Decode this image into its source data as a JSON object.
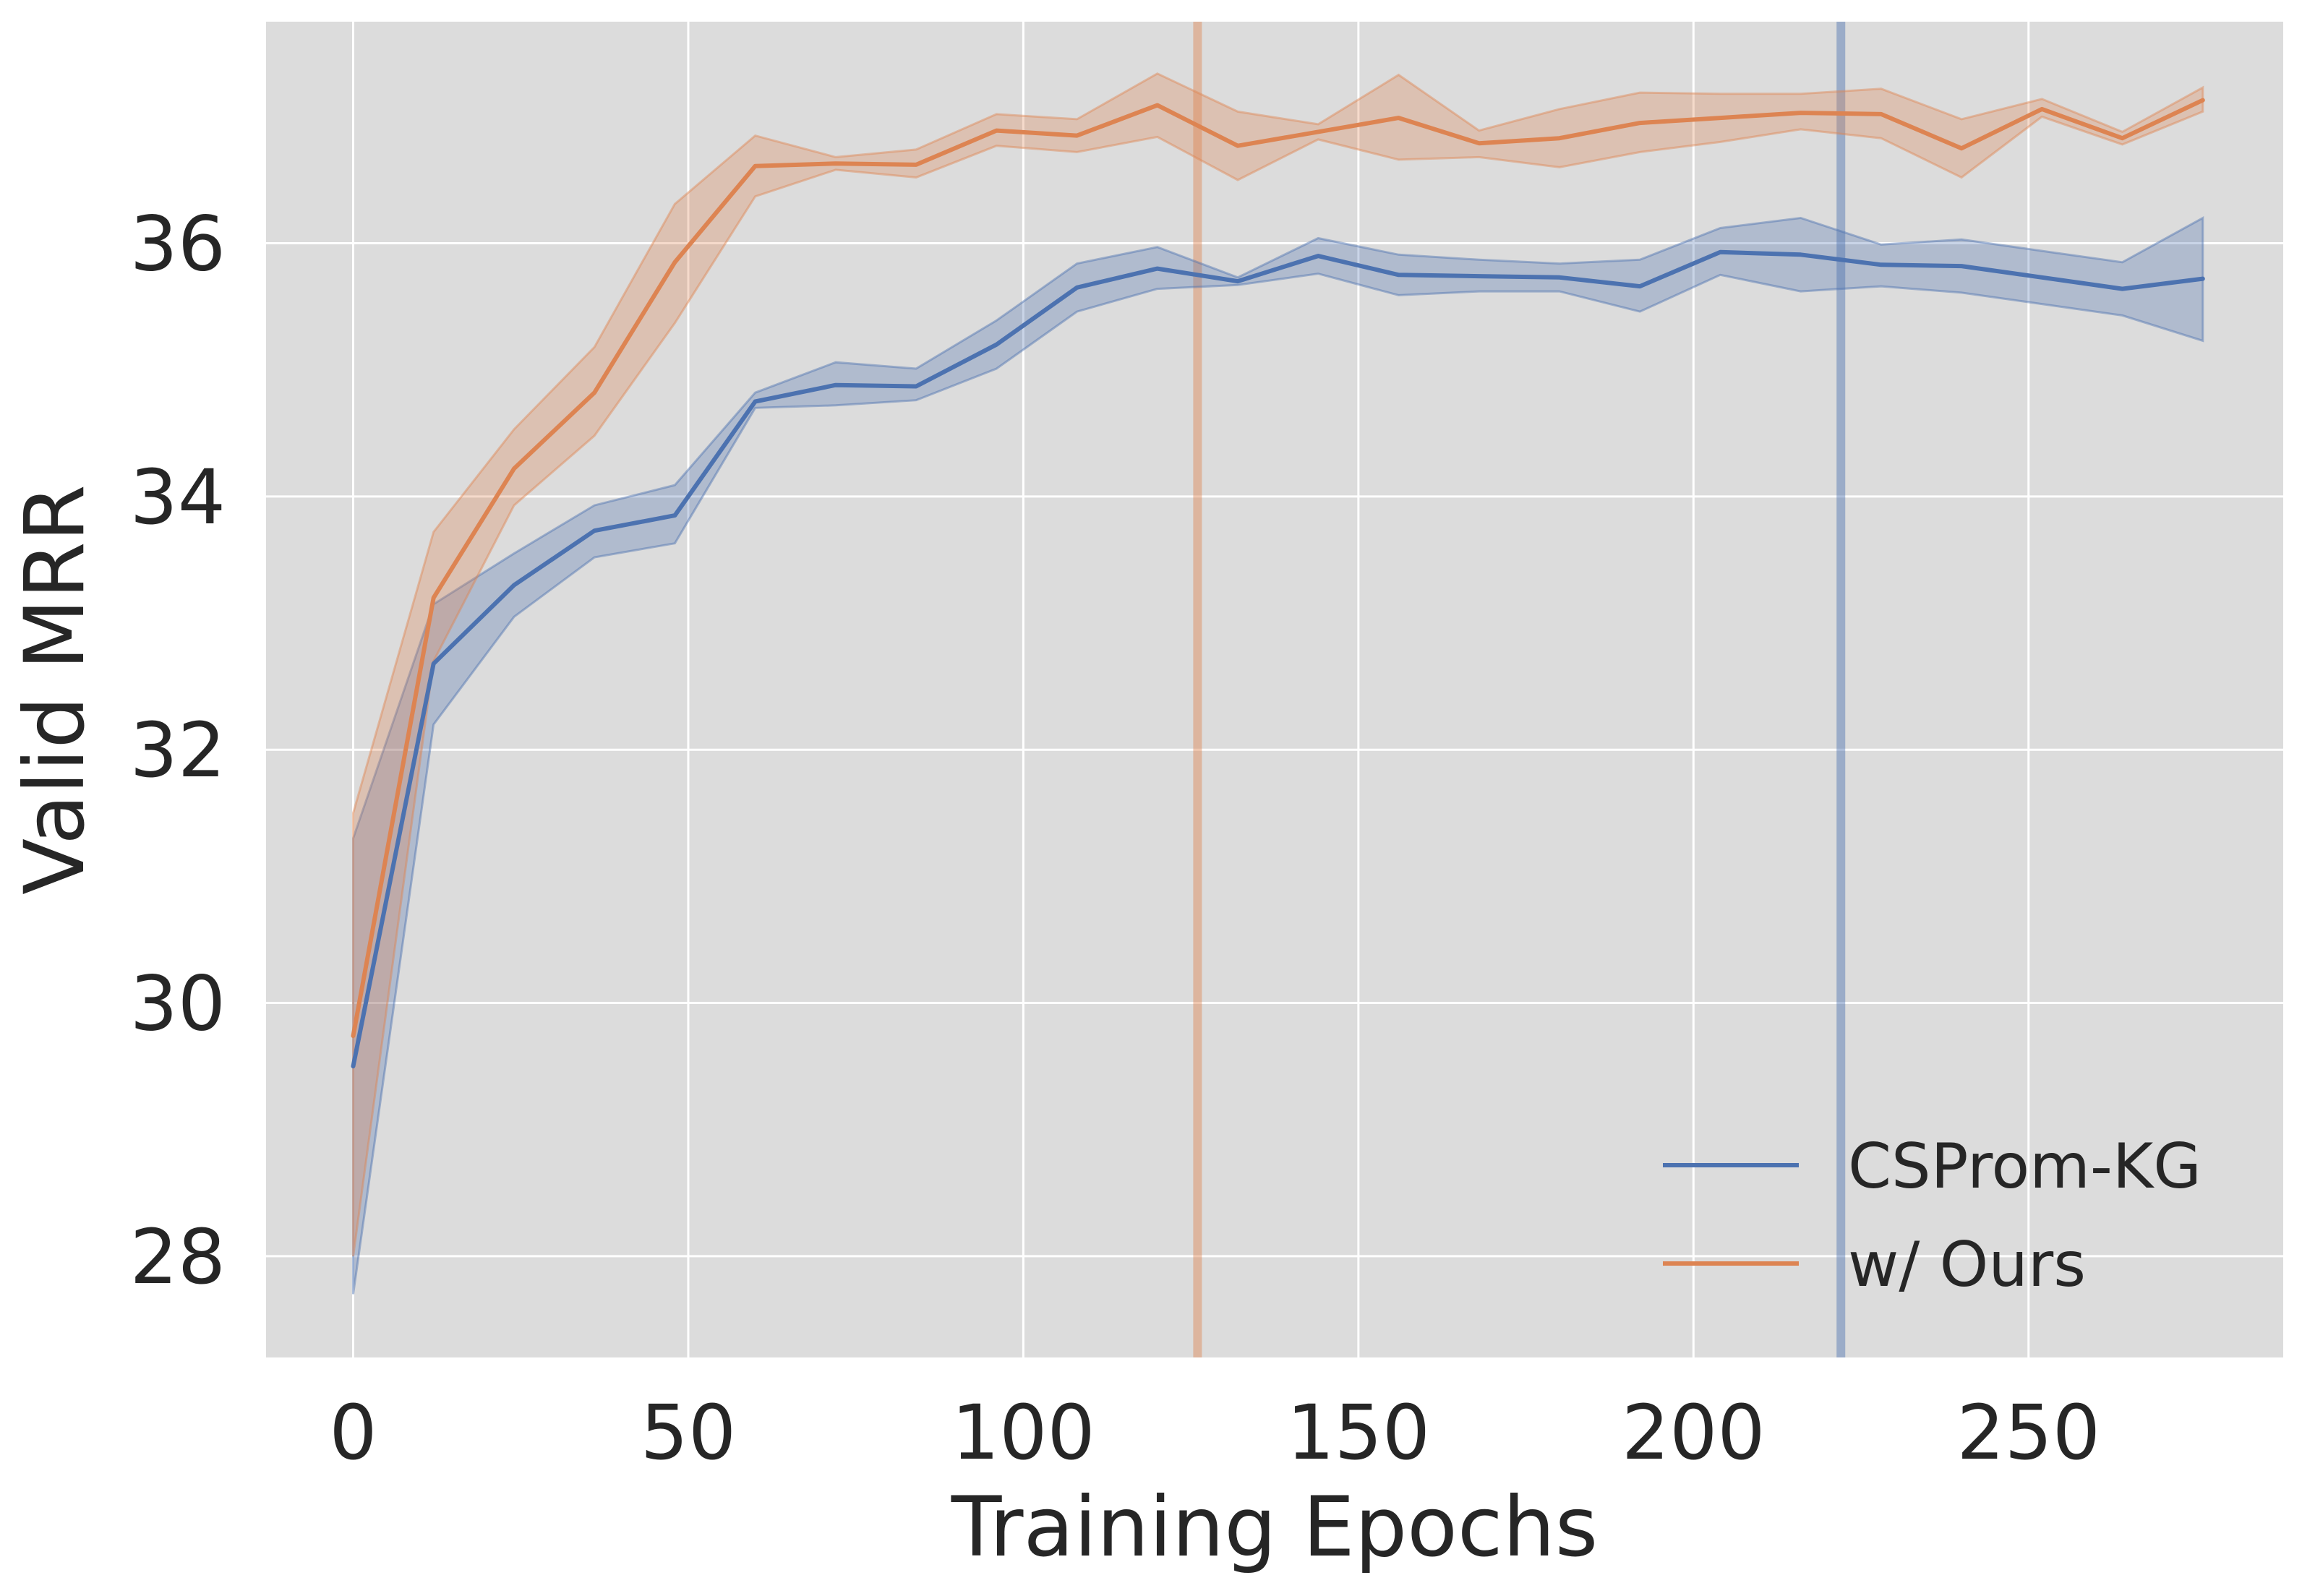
{
  "chart_data": {
    "type": "line",
    "title": "",
    "xlabel": "Training Epochs",
    "ylabel": "Valid MRR",
    "xlim": [
      -13,
      288
    ],
    "ylim": [
      27.2,
      37.75
    ],
    "xticks": [
      0,
      50,
      100,
      150,
      200,
      250
    ],
    "yticks": [
      28,
      30,
      32,
      34,
      36
    ],
    "grid": true,
    "background": "#dcdcdc",
    "legend_position": "bottom-right",
    "x": [
      0,
      12,
      24,
      36,
      48,
      60,
      72,
      84,
      96,
      108,
      120,
      132,
      144,
      156,
      168,
      180,
      192,
      204,
      216,
      228,
      240,
      252,
      264,
      276
    ],
    "series": [
      {
        "name": "CSProm-KG",
        "color": "#4c72b0",
        "values": [
          29.5,
          32.68,
          33.3,
          33.73,
          33.85,
          34.75,
          34.88,
          34.87,
          35.2,
          35.65,
          35.8,
          35.7,
          35.9,
          35.75,
          35.74,
          35.73,
          35.66,
          35.93,
          35.91,
          35.83,
          35.82,
          35.73,
          35.64,
          35.72
        ],
        "lower": [
          27.7,
          32.2,
          33.05,
          33.52,
          33.63,
          34.7,
          34.72,
          34.76,
          35.01,
          35.46,
          35.64,
          35.67,
          35.76,
          35.59,
          35.62,
          35.62,
          35.46,
          35.75,
          35.62,
          35.66,
          35.61,
          35.52,
          35.43,
          35.23
        ],
        "upper": [
          31.3,
          33.15,
          33.55,
          33.93,
          34.09,
          34.82,
          35.06,
          35.01,
          35.39,
          35.84,
          35.97,
          35.73,
          36.04,
          35.91,
          35.87,
          35.84,
          35.87,
          36.12,
          36.2,
          35.99,
          36.03,
          35.94,
          35.85,
          36.2
        ]
      },
      {
        "name": "w/ Ours",
        "color": "#dd8452",
        "values": [
          29.74,
          33.2,
          34.22,
          34.82,
          35.85,
          36.61,
          36.63,
          36.62,
          36.89,
          36.85,
          37.09,
          36.77,
          36.88,
          36.99,
          36.79,
          36.83,
          36.95,
          36.99,
          37.03,
          37.02,
          36.75,
          37.06,
          36.83,
          37.13
        ],
        "lower": [
          28.0,
          32.7,
          33.93,
          34.48,
          35.37,
          36.37,
          36.58,
          36.52,
          36.77,
          36.72,
          36.84,
          36.5,
          36.82,
          36.66,
          36.68,
          36.6,
          36.72,
          36.8,
          36.9,
          36.83,
          36.52,
          37.0,
          36.78,
          37.04
        ],
        "upper": [
          31.5,
          33.72,
          34.53,
          35.18,
          36.31,
          36.85,
          36.68,
          36.74,
          37.02,
          36.98,
          37.34,
          37.04,
          36.94,
          37.33,
          36.89,
          37.06,
          37.19,
          37.18,
          37.18,
          37.22,
          36.98,
          37.14,
          36.88,
          37.23
        ]
      }
    ],
    "vertical_lines": [
      {
        "x": 126,
        "color": "#dd8452"
      },
      {
        "x": 222,
        "color": "#4c72b0"
      }
    ]
  }
}
